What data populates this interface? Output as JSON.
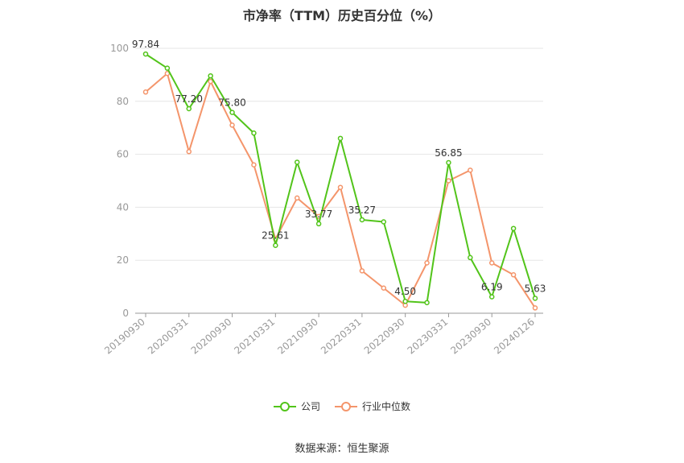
{
  "chart_data": {
    "type": "line",
    "title": "市净率（TTM）历史百分位（%）",
    "x_tick_labels": [
      "20190930",
      "20200331",
      "20200930",
      "20210331",
      "20210930",
      "20220331",
      "20220930",
      "20230331",
      "20230930",
      "20240126"
    ],
    "x": [
      "20190930",
      "20191231",
      "20200331",
      "20200630",
      "20200930",
      "20201231",
      "20210331",
      "20210630",
      "20210930",
      "20211231",
      "20220331",
      "20220630",
      "20220930",
      "20221231",
      "20230331",
      "20230630",
      "20230930",
      "20231231",
      "20240126"
    ],
    "ylim": [
      0,
      100
    ],
    "y_ticks": [
      0,
      20,
      40,
      60,
      80,
      100
    ],
    "grid": true,
    "legend_position": "bottom",
    "series": [
      {
        "name": "公司",
        "color": "#52c41a",
        "values": [
          97.84,
          92.5,
          77.2,
          89.6,
          75.8,
          68.0,
          25.61,
          57.0,
          33.77,
          66.0,
          35.27,
          34.5,
          4.5,
          4.0,
          56.85,
          21.0,
          6.19,
          32.0,
          5.63
        ],
        "labeled_points": [
          {
            "index": 0,
            "label": "97.84"
          },
          {
            "index": 2,
            "label": "77.20"
          },
          {
            "index": 4,
            "label": "75.80"
          },
          {
            "index": 6,
            "label": "25.61"
          },
          {
            "index": 8,
            "label": "33.77"
          },
          {
            "index": 10,
            "label": "35.27"
          },
          {
            "index": 12,
            "label": "4.50"
          },
          {
            "index": 14,
            "label": "56.85"
          },
          {
            "index": 16,
            "label": "6.19"
          },
          {
            "index": 18,
            "label": "5.63"
          }
        ]
      },
      {
        "name": "行业中位数",
        "color": "#f4956b",
        "values": [
          83.5,
          90.5,
          61.0,
          87.5,
          71.0,
          56.0,
          28.0,
          43.5,
          36.5,
          47.5,
          16.0,
          9.5,
          3.0,
          19.0,
          50.0,
          54.0,
          19.0,
          14.5,
          2.0
        ]
      }
    ]
  },
  "source": "数据来源：恒生聚源"
}
